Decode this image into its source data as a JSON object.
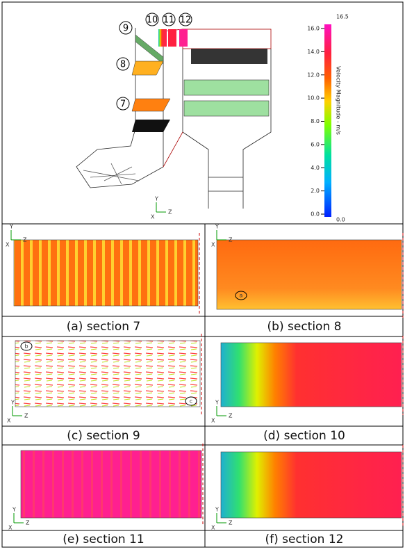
{
  "figure": {
    "top": {
      "section_labels": [
        "9",
        "10",
        "11",
        "12",
        "8",
        "7"
      ],
      "axis": [
        "Y",
        "Z",
        "X"
      ],
      "colorbar": {
        "title": "Velocity Magnitude - m/s",
        "max_label": "16.5",
        "min_label": "0.0",
        "ticks": [
          "0.0",
          "2.0",
          "4.0",
          "6.0",
          "8.0",
          "10.0",
          "12.0",
          "14.0",
          "16.0"
        ]
      }
    },
    "panels": [
      {
        "caption": "(a) section 7",
        "axes": [
          "Y",
          "Z",
          "X"
        ]
      },
      {
        "caption": "(b) section 8",
        "axes": [
          "Y",
          "Z",
          "X"
        ]
      },
      {
        "caption": "(c) section 9",
        "axes": [
          "Y",
          "Z",
          "X"
        ]
      },
      {
        "caption": "(d) section 10",
        "axes": [
          "Y",
          "Z",
          "X"
        ]
      },
      {
        "caption": "(e) section 11",
        "axes": [
          "Y",
          "Z",
          "X"
        ]
      },
      {
        "caption": "(f) section 12",
        "axes": [
          "Y",
          "Z",
          "X"
        ]
      }
    ],
    "markers": [
      "a",
      "b",
      "c"
    ]
  }
}
